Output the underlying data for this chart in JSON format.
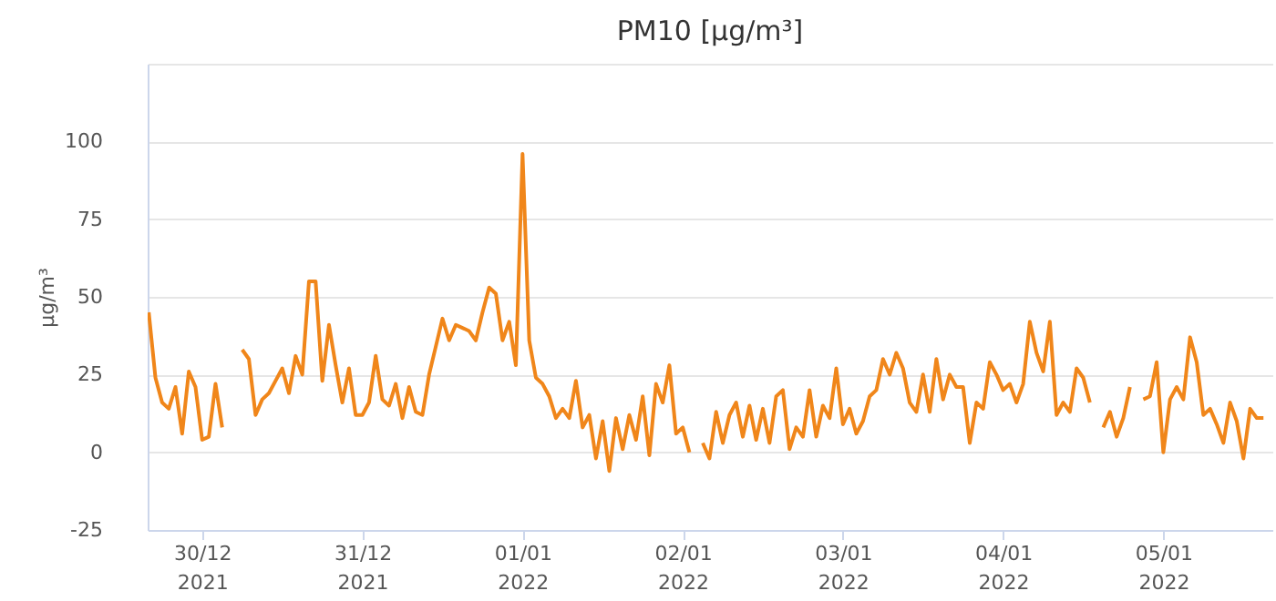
{
  "chart_data": {
    "type": "line",
    "title": "PM10 [µg/m³]",
    "ylabel": "µg/m³",
    "x": [
      "2021-12-29T16:00",
      "2021-12-29T17:00",
      "2021-12-29T18:00",
      "2021-12-29T19:00",
      "2021-12-29T20:00",
      "2021-12-29T21:00",
      "2021-12-29T22:00",
      "2021-12-29T23:00",
      "2021-12-30T00:00",
      "2021-12-30T01:00",
      "2021-12-30T02:00",
      "2021-12-30T03:00",
      "2021-12-30T04:00",
      "2021-12-30T05:00",
      "2021-12-30T06:00",
      "2021-12-30T07:00",
      "2021-12-30T08:00",
      "2021-12-30T09:00",
      "2021-12-30T10:00",
      "2021-12-30T11:00",
      "2021-12-30T12:00",
      "2021-12-30T13:00",
      "2021-12-30T14:00",
      "2021-12-30T15:00",
      "2021-12-30T16:00",
      "2021-12-30T17:00",
      "2021-12-30T18:00",
      "2021-12-30T19:00",
      "2021-12-30T20:00",
      "2021-12-30T21:00",
      "2021-12-30T22:00",
      "2021-12-30T23:00",
      "2021-12-31T00:00",
      "2021-12-31T01:00",
      "2021-12-31T02:00",
      "2021-12-31T03:00",
      "2021-12-31T04:00",
      "2021-12-31T05:00",
      "2021-12-31T06:00",
      "2021-12-31T07:00",
      "2021-12-31T08:00",
      "2021-12-31T09:00",
      "2021-12-31T10:00",
      "2021-12-31T11:00",
      "2021-12-31T12:00",
      "2021-12-31T13:00",
      "2021-12-31T14:00",
      "2021-12-31T15:00",
      "2021-12-31T16:00",
      "2021-12-31T17:00",
      "2021-12-31T18:00",
      "2021-12-31T19:00",
      "2021-12-31T20:00",
      "2021-12-31T21:00",
      "2021-12-31T22:00",
      "2021-12-31T23:00",
      "2022-01-01T00:00",
      "2022-01-01T01:00",
      "2022-01-01T02:00",
      "2022-01-01T03:00",
      "2022-01-01T04:00",
      "2022-01-01T05:00",
      "2022-01-01T06:00",
      "2022-01-01T07:00",
      "2022-01-01T08:00",
      "2022-01-01T09:00",
      "2022-01-01T10:00",
      "2022-01-01T11:00",
      "2022-01-01T12:00",
      "2022-01-01T13:00",
      "2022-01-01T14:00",
      "2022-01-01T15:00",
      "2022-01-01T16:00",
      "2022-01-01T17:00",
      "2022-01-01T18:00",
      "2022-01-01T19:00",
      "2022-01-01T20:00",
      "2022-01-01T21:00",
      "2022-01-01T22:00",
      "2022-01-01T23:00",
      "2022-01-02T00:00",
      "2022-01-02T01:00",
      "2022-01-02T02:00",
      "2022-01-02T03:00",
      "2022-01-02T04:00",
      "2022-01-02T05:00",
      "2022-01-02T06:00",
      "2022-01-02T07:00",
      "2022-01-02T08:00",
      "2022-01-02T09:00",
      "2022-01-02T10:00",
      "2022-01-02T11:00",
      "2022-01-02T12:00",
      "2022-01-02T13:00",
      "2022-01-02T14:00",
      "2022-01-02T15:00",
      "2022-01-02T16:00",
      "2022-01-02T17:00",
      "2022-01-02T18:00",
      "2022-01-02T19:00",
      "2022-01-02T20:00",
      "2022-01-02T21:00",
      "2022-01-02T22:00",
      "2022-01-02T23:00",
      "2022-01-03T00:00",
      "2022-01-03T01:00",
      "2022-01-03T02:00",
      "2022-01-03T03:00",
      "2022-01-03T04:00",
      "2022-01-03T05:00",
      "2022-01-03T06:00",
      "2022-01-03T07:00",
      "2022-01-03T08:00",
      "2022-01-03T09:00",
      "2022-01-03T10:00",
      "2022-01-03T11:00",
      "2022-01-03T12:00",
      "2022-01-03T13:00",
      "2022-01-03T14:00",
      "2022-01-03T15:00",
      "2022-01-03T16:00",
      "2022-01-03T17:00",
      "2022-01-03T18:00",
      "2022-01-03T19:00",
      "2022-01-03T20:00",
      "2022-01-03T21:00",
      "2022-01-03T22:00",
      "2022-01-03T23:00",
      "2022-01-04T00:00",
      "2022-01-04T01:00",
      "2022-01-04T02:00",
      "2022-01-04T03:00",
      "2022-01-04T04:00",
      "2022-01-04T05:00",
      "2022-01-04T06:00",
      "2022-01-04T07:00",
      "2022-01-04T08:00",
      "2022-01-04T09:00",
      "2022-01-04T10:00",
      "2022-01-04T11:00",
      "2022-01-04T12:00",
      "2022-01-04T13:00",
      "2022-01-04T14:00",
      "2022-01-04T15:00",
      "2022-01-04T16:00",
      "2022-01-04T17:00",
      "2022-01-04T18:00",
      "2022-01-04T19:00",
      "2022-01-04T20:00",
      "2022-01-04T21:00",
      "2022-01-04T22:00",
      "2022-01-04T23:00",
      "2022-01-05T00:00",
      "2022-01-05T01:00",
      "2022-01-05T02:00",
      "2022-01-05T03:00",
      "2022-01-05T04:00",
      "2022-01-05T05:00",
      "2022-01-05T06:00",
      "2022-01-05T07:00",
      "2022-01-05T08:00",
      "2022-01-05T09:00",
      "2022-01-05T10:00",
      "2022-01-05T11:00",
      "2022-01-05T12:00",
      "2022-01-05T13:00",
      "2022-01-05T14:00",
      "2022-01-05T15:00"
    ],
    "series": [
      {
        "color": "#f0861a",
        "values": [
          45,
          24,
          16,
          14,
          21,
          6,
          26,
          21,
          4,
          5,
          22,
          8,
          null,
          null,
          33,
          30,
          12,
          17,
          19,
          23,
          27,
          19,
          31,
          25,
          55,
          55,
          23,
          41,
          28,
          16,
          27,
          12,
          12,
          16,
          31,
          17,
          15,
          22,
          11,
          21,
          13,
          12,
          25,
          34,
          43,
          36,
          41,
          40,
          39,
          36,
          45,
          53,
          51,
          36,
          42,
          28,
          96,
          36,
          24,
          22,
          18,
          11,
          14,
          11,
          23,
          8,
          12,
          -2,
          10,
          -6,
          11,
          1,
          12,
          4,
          18,
          -1,
          22,
          16,
          28,
          6,
          8,
          0,
          null,
          3,
          -2,
          13,
          3,
          12,
          16,
          5,
          15,
          4,
          14,
          3,
          18,
          20,
          1,
          8,
          5,
          20,
          5,
          15,
          11,
          27,
          9,
          14,
          6,
          10,
          18,
          20,
          30,
          25,
          32,
          27,
          16,
          13,
          25,
          13,
          30,
          17,
          25,
          21,
          21,
          3,
          16,
          14,
          29,
          25,
          20,
          22,
          16,
          22,
          42,
          32,
          26,
          42,
          12,
          16,
          13,
          27,
          24,
          16,
          null,
          8,
          13,
          5,
          11,
          21,
          null,
          17,
          18,
          29,
          0,
          17,
          21,
          17,
          37,
          29,
          12,
          14,
          9,
          3,
          16,
          10,
          -2,
          14,
          11,
          11
        ]
      }
    ],
    "xlim": [
      "2021-12-29T15:50",
      "2022-01-05T16:20"
    ],
    "xticks": [
      {
        "value": "2021-12-30T00:00",
        "label": "30/12\n2021"
      },
      {
        "value": "2021-12-31T00:00",
        "label": "31/12\n2021"
      },
      {
        "value": "2022-01-01T00:00",
        "label": "01/01\n2022"
      },
      {
        "value": "2022-01-02T00:00",
        "label": "02/01\n2022"
      },
      {
        "value": "2022-01-03T00:00",
        "label": "03/01\n2022"
      },
      {
        "value": "2022-01-04T00:00",
        "label": "04/01\n2022"
      },
      {
        "value": "2022-01-05T00:00",
        "label": "05/01\n2022"
      }
    ],
    "ylim": [
      -25,
      125
    ],
    "yticks": [
      -25,
      0,
      25,
      50,
      75,
      100,
      {
        "value": 125,
        "label": null
      }
    ],
    "grid": "y",
    "legend": false,
    "line_style": "solid",
    "marker": "none"
  }
}
